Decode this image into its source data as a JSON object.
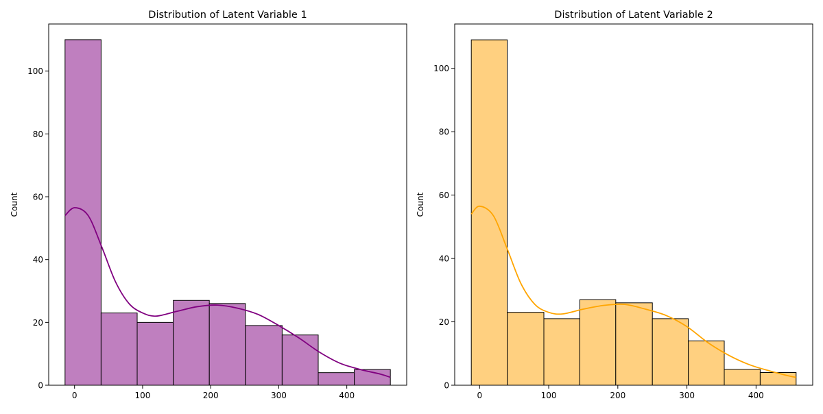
{
  "chart_data": [
    {
      "type": "bar",
      "title": "Distribution of Latent Variable 1",
      "xlabel": "",
      "ylabel": "Count",
      "bin_edges": [
        -14,
        39,
        92,
        145,
        198,
        251,
        305,
        358,
        411,
        464
      ],
      "counts": [
        110,
        23,
        20,
        27,
        26,
        19,
        16,
        4,
        5
      ],
      "xlim": [
        -38,
        488
      ],
      "ylim": [
        0,
        115
      ],
      "xticks": [
        0,
        100,
        200,
        300,
        400
      ],
      "yticks": [
        0,
        20,
        40,
        60,
        80,
        100
      ],
      "grid": false,
      "bar_color": "#BF7FBF",
      "line_color": "#800080",
      "kde_line": {
        "x": [
          -14,
          0,
          20,
          40,
          60,
          80,
          100,
          120,
          150,
          180,
          210,
          240,
          270,
          300,
          330,
          360,
          390,
          420,
          450,
          464
        ],
        "y": [
          54,
          56.5,
          54,
          44,
          33,
          26,
          23,
          22,
          23.5,
          25,
          25.5,
          24.5,
          22.5,
          19,
          15,
          10.5,
          7,
          5,
          3.5,
          2.5
        ]
      }
    },
    {
      "type": "bar",
      "title": "Distribution of Latent Variable 2",
      "xlabel": "",
      "ylabel": "Count",
      "bin_edges": [
        -12,
        40,
        93,
        145,
        197,
        250,
        302,
        354,
        406,
        458
      ],
      "counts": [
        109,
        23,
        21,
        27,
        26,
        21,
        14,
        5,
        4
      ],
      "xlim": [
        -36,
        482
      ],
      "ylim": [
        0,
        114
      ],
      "xticks": [
        0,
        100,
        200,
        300,
        400
      ],
      "yticks": [
        0,
        20,
        40,
        60,
        80,
        100
      ],
      "grid": false,
      "bar_color": "#FFD080",
      "line_color": "#FFA500",
      "kde_line": {
        "x": [
          -12,
          0,
          20,
          40,
          60,
          80,
          100,
          120,
          150,
          180,
          210,
          240,
          270,
          300,
          330,
          360,
          390,
          420,
          450,
          458
        ],
        "y": [
          54,
          56.5,
          53.5,
          43,
          32,
          25.5,
          23,
          22.5,
          24,
          25.2,
          25.5,
          24,
          22,
          18.5,
          13.5,
          9.5,
          6.5,
          4.5,
          2.8,
          2.5
        ]
      }
    }
  ]
}
